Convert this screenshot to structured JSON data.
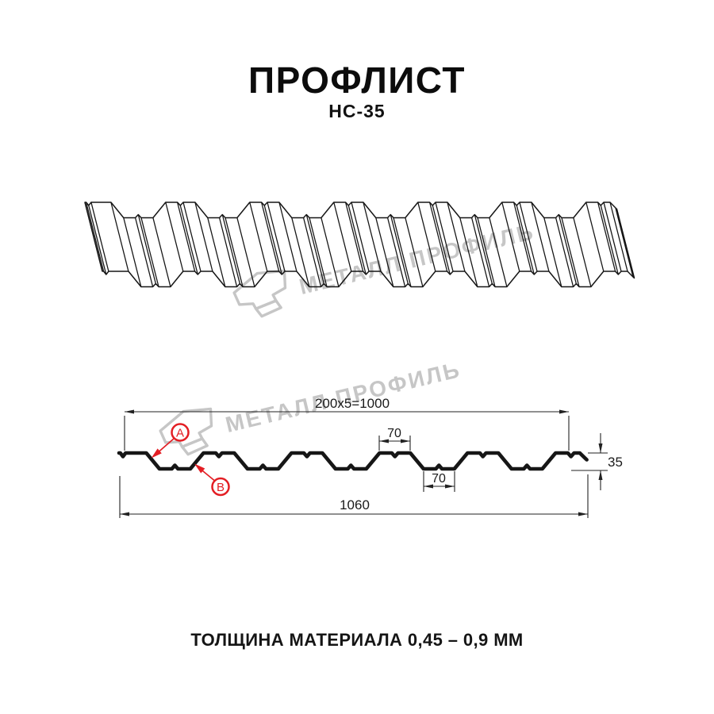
{
  "header": {
    "title": "ПРОФЛИСТ",
    "subtitle": "НС-35"
  },
  "watermark": {
    "text": "МЕТАЛЛ ПРОФИЛЬ"
  },
  "section": {
    "dim_top": "200x5=1000",
    "dim_crest": "70",
    "dim_valley": "70",
    "dim_height": "35",
    "dim_total": "1060",
    "label_a": "A",
    "label_b": "B"
  },
  "footer": {
    "text": "ТОЛЩИНА МАТЕРИАЛА 0,45 – 0,9 ММ"
  },
  "colors": {
    "line": "#161616",
    "dim": "#222222",
    "accent_red": "#e31e24",
    "watermark": "#c6c6c6"
  }
}
